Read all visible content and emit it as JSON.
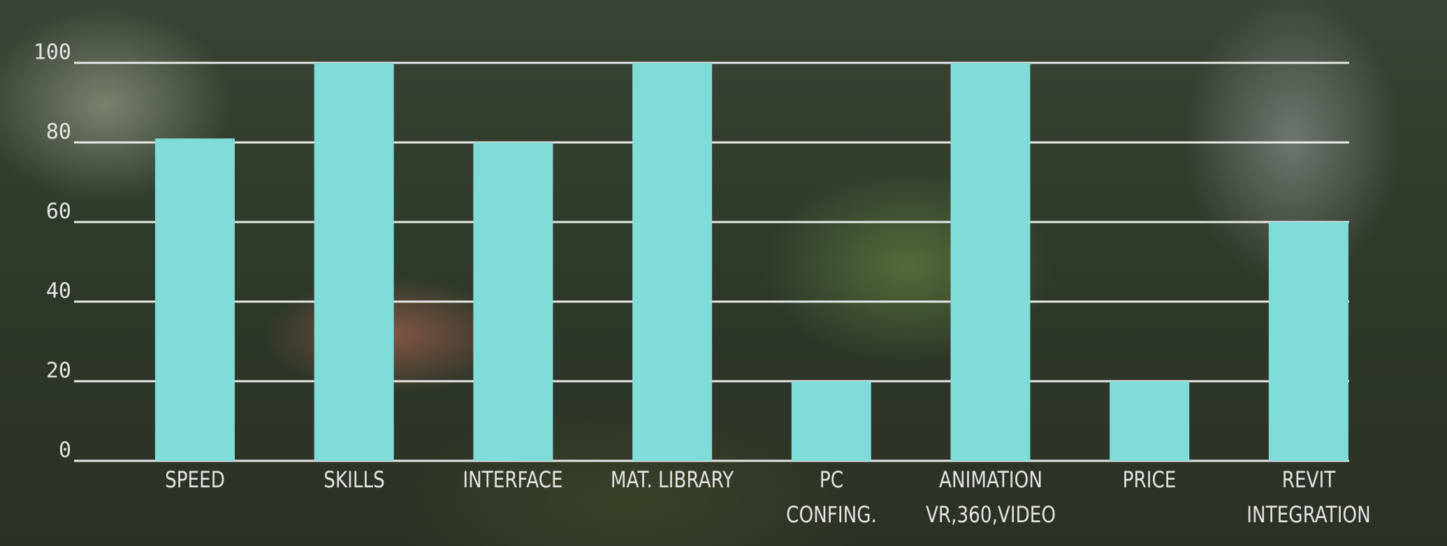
{
  "chart_data": {
    "type": "bar",
    "categories": [
      "SPEED",
      "SKILLS",
      "INTERFACE",
      "MAT. LIBRARY",
      "PC\nCONFING.",
      "ANIMATION\nVR,360,VIDEO",
      "PRICE",
      "REVIT\nINTEGRATION"
    ],
    "values": [
      81,
      100,
      80,
      100,
      20,
      100,
      20,
      60
    ],
    "color": "#7fdcd8",
    "ylim": [
      0,
      100
    ],
    "yticks": [
      0,
      20,
      40,
      60,
      80,
      100
    ],
    "grid": true
  }
}
